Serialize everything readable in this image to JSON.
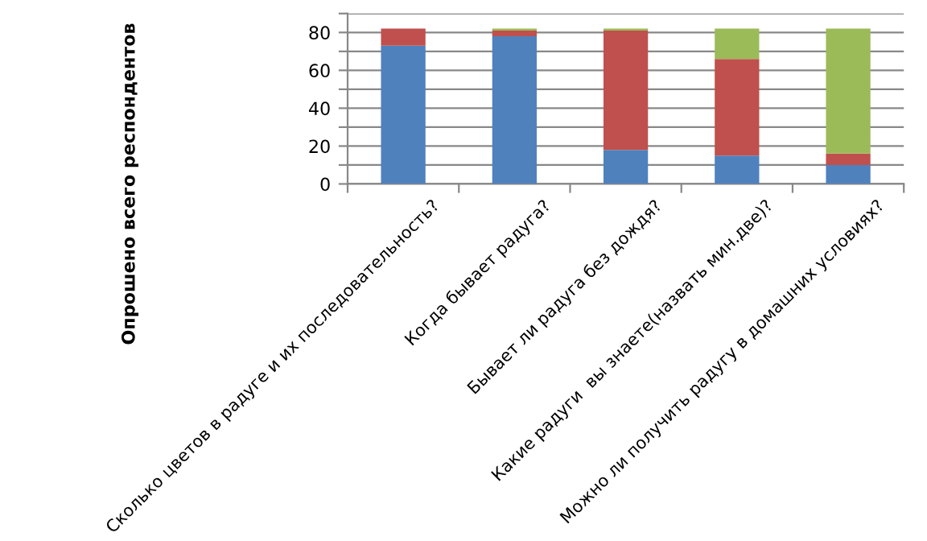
{
  "chart_data": {
    "type": "bar",
    "stacked": true,
    "ylabel": "Опрошено всего респондентов",
    "categories": [
      "Сколько цветов в радуге и их последовательность?",
      "Когда бывает радуга?",
      "Бывает ли радуга без дождя?",
      "Какие радуги  вы знаете(назвать мин.две)?",
      "Можно ли получить радугу в домашних условиях?"
    ],
    "series": [
      {
        "color": "#4f81bd",
        "values": [
          73,
          78,
          18,
          15,
          10
        ]
      },
      {
        "color": "#c0504d",
        "values": [
          9,
          3,
          63,
          51,
          6
        ]
      },
      {
        "color": "#9bbb59",
        "values": [
          0,
          1,
          1,
          16,
          66
        ]
      }
    ],
    "ylim": [
      0,
      90
    ],
    "yticks": [
      0,
      {
        "value": 10,
        "label": null
      },
      20,
      {
        "value": 30,
        "label": null
      },
      40,
      {
        "value": 50,
        "label": null
      },
      60,
      {
        "value": 70,
        "label": null
      },
      80,
      {
        "value": 90,
        "label": null
      }
    ],
    "grid": "y",
    "legend": false
  }
}
